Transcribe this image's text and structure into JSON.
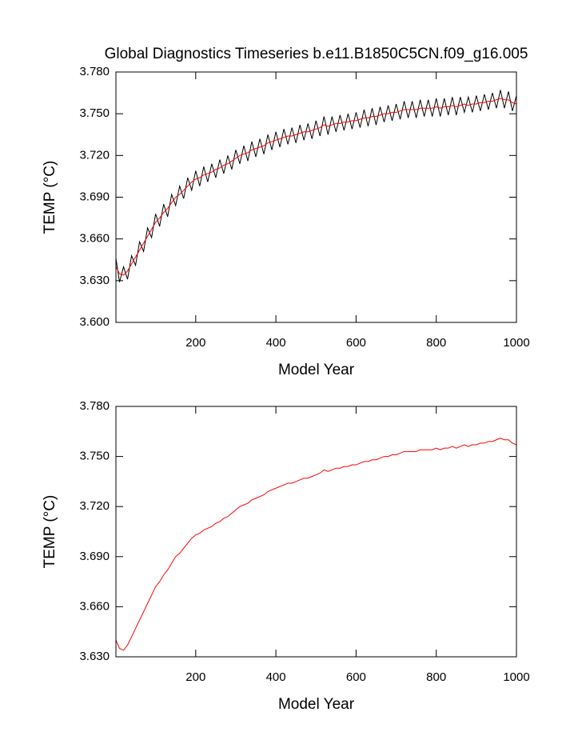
{
  "chart_data": [
    {
      "type": "line",
      "title": "Global Diagnostics Timeseries b.e11.B1850C5CN.f09_g16.005",
      "x_label": "Model Year",
      "y_label": "TEMP (°C)",
      "x": [
        1,
        10,
        20,
        30,
        40,
        50,
        60,
        70,
        80,
        90,
        100,
        110,
        120,
        130,
        140,
        150,
        160,
        170,
        180,
        190,
        200,
        210,
        220,
        230,
        240,
        250,
        260,
        270,
        280,
        290,
        300,
        310,
        320,
        330,
        340,
        350,
        360,
        370,
        380,
        390,
        400,
        410,
        420,
        430,
        440,
        450,
        460,
        470,
        480,
        490,
        500,
        510,
        520,
        530,
        540,
        550,
        560,
        570,
        580,
        590,
        600,
        610,
        620,
        630,
        640,
        650,
        660,
        670,
        680,
        690,
        700,
        710,
        720,
        730,
        740,
        750,
        760,
        770,
        780,
        790,
        800,
        810,
        820,
        830,
        840,
        850,
        860,
        870,
        880,
        890,
        900,
        910,
        920,
        930,
        940,
        950,
        960,
        970,
        980,
        990,
        1000
      ],
      "series": [
        {
          "color": "#000000",
          "values": [
            3.646,
            3.629,
            3.64,
            3.631,
            3.648,
            3.641,
            3.658,
            3.651,
            3.668,
            3.661,
            3.678,
            3.669,
            3.685,
            3.676,
            3.692,
            3.684,
            3.698,
            3.689,
            3.704,
            3.695,
            3.709,
            3.698,
            3.712,
            3.701,
            3.714,
            3.704,
            3.717,
            3.707,
            3.72,
            3.71,
            3.724,
            3.714,
            3.727,
            3.716,
            3.73,
            3.719,
            3.732,
            3.721,
            3.735,
            3.724,
            3.737,
            3.726,
            3.739,
            3.728,
            3.74,
            3.729,
            3.742,
            3.731,
            3.743,
            3.732,
            3.745,
            3.734,
            3.748,
            3.735,
            3.748,
            3.737,
            3.749,
            3.738,
            3.75,
            3.739,
            3.751,
            3.74,
            3.753,
            3.741,
            3.754,
            3.742,
            3.755,
            3.744,
            3.756,
            3.745,
            3.757,
            3.746,
            3.759,
            3.747,
            3.759,
            3.747,
            3.76,
            3.748,
            3.76,
            3.748,
            3.761,
            3.748,
            3.761,
            3.749,
            3.762,
            3.749,
            3.762,
            3.751,
            3.762,
            3.751,
            3.763,
            3.752,
            3.764,
            3.753,
            3.765,
            3.754,
            3.767,
            3.754,
            3.766,
            3.752,
            3.763
          ]
        },
        {
          "color": "#ff0000",
          "values": [
            3.64,
            3.635,
            3.634,
            3.637,
            3.642,
            3.647,
            3.652,
            3.657,
            3.662,
            3.667,
            3.672,
            3.675,
            3.679,
            3.682,
            3.686,
            3.69,
            3.692,
            3.695,
            3.698,
            3.701,
            3.703,
            3.704,
            3.706,
            3.707,
            3.708,
            3.71,
            3.711,
            3.713,
            3.714,
            3.716,
            3.718,
            3.72,
            3.721,
            3.722,
            3.724,
            3.725,
            3.726,
            3.727,
            3.729,
            3.73,
            3.731,
            3.732,
            3.733,
            3.734,
            3.734,
            3.735,
            3.736,
            3.737,
            3.737,
            3.738,
            3.739,
            3.74,
            3.742,
            3.741,
            3.742,
            3.743,
            3.743,
            3.744,
            3.744,
            3.745,
            3.745,
            3.746,
            3.747,
            3.747,
            3.748,
            3.748,
            3.749,
            3.75,
            3.75,
            3.751,
            3.751,
            3.752,
            3.753,
            3.753,
            3.753,
            3.753,
            3.754,
            3.754,
            3.754,
            3.754,
            3.755,
            3.754,
            3.755,
            3.755,
            3.756,
            3.755,
            3.756,
            3.757,
            3.756,
            3.757,
            3.757,
            3.758,
            3.758,
            3.759,
            3.759,
            3.76,
            3.761,
            3.76,
            3.76,
            3.758,
            3.757
          ]
        }
      ],
      "xlim": [
        1,
        1000
      ],
      "xticks": [
        200,
        400,
        600,
        800,
        1000
      ],
      "ylim": [
        3.6,
        3.78
      ],
      "yticks": [
        {
          "value": 3.6,
          "label": "3.600"
        },
        {
          "value": 3.63,
          "label": "3.630"
        },
        {
          "value": 3.66,
          "label": "3.660"
        },
        {
          "value": 3.69,
          "label": "3.690"
        },
        {
          "value": 3.72,
          "label": "3.720"
        },
        {
          "value": 3.75,
          "label": "3.750"
        },
        {
          "value": 3.78,
          "label": "3.780"
        }
      ]
    },
    {
      "type": "line",
      "x_label": "Model Year",
      "y_label": "TEMP (°C)",
      "x": [
        1,
        10,
        20,
        30,
        40,
        50,
        60,
        70,
        80,
        90,
        100,
        110,
        120,
        130,
        140,
        150,
        160,
        170,
        180,
        190,
        200,
        210,
        220,
        230,
        240,
        250,
        260,
        270,
        280,
        290,
        300,
        310,
        320,
        330,
        340,
        350,
        360,
        370,
        380,
        390,
        400,
        410,
        420,
        430,
        440,
        450,
        460,
        470,
        480,
        490,
        500,
        510,
        520,
        530,
        540,
        550,
        560,
        570,
        580,
        590,
        600,
        610,
        620,
        630,
        640,
        650,
        660,
        670,
        680,
        690,
        700,
        710,
        720,
        730,
        740,
        750,
        760,
        770,
        780,
        790,
        800,
        810,
        820,
        830,
        840,
        850,
        860,
        870,
        880,
        890,
        900,
        910,
        920,
        930,
        940,
        950,
        960,
        970,
        980,
        990,
        1000
      ],
      "series": [
        {
          "color": "#ff0000",
          "values": [
            3.64,
            3.635,
            3.634,
            3.637,
            3.642,
            3.647,
            3.652,
            3.657,
            3.662,
            3.667,
            3.672,
            3.675,
            3.679,
            3.682,
            3.686,
            3.69,
            3.692,
            3.695,
            3.698,
            3.701,
            3.703,
            3.704,
            3.706,
            3.707,
            3.708,
            3.71,
            3.711,
            3.713,
            3.714,
            3.716,
            3.718,
            3.72,
            3.721,
            3.722,
            3.724,
            3.725,
            3.726,
            3.727,
            3.729,
            3.73,
            3.731,
            3.732,
            3.733,
            3.734,
            3.734,
            3.735,
            3.736,
            3.737,
            3.737,
            3.738,
            3.739,
            3.74,
            3.742,
            3.741,
            3.742,
            3.743,
            3.743,
            3.744,
            3.744,
            3.745,
            3.745,
            3.746,
            3.747,
            3.747,
            3.748,
            3.748,
            3.749,
            3.75,
            3.75,
            3.751,
            3.751,
            3.752,
            3.753,
            3.753,
            3.753,
            3.753,
            3.754,
            3.754,
            3.754,
            3.754,
            3.755,
            3.754,
            3.755,
            3.755,
            3.756,
            3.755,
            3.756,
            3.757,
            3.756,
            3.757,
            3.757,
            3.758,
            3.758,
            3.759,
            3.759,
            3.76,
            3.761,
            3.76,
            3.76,
            3.758,
            3.757
          ]
        }
      ],
      "xlim": [
        1,
        1000
      ],
      "xticks": [
        200,
        400,
        600,
        800,
        1000
      ],
      "ylim": [
        3.63,
        3.78
      ],
      "yticks": [
        {
          "value": 3.63,
          "label": "3.630"
        },
        {
          "value": 3.66,
          "label": "3.660"
        },
        {
          "value": 3.69,
          "label": "3.690"
        },
        {
          "value": 3.72,
          "label": "3.720"
        },
        {
          "value": 3.75,
          "label": "3.750"
        },
        {
          "value": 3.78,
          "label": "3.780"
        }
      ]
    }
  ]
}
